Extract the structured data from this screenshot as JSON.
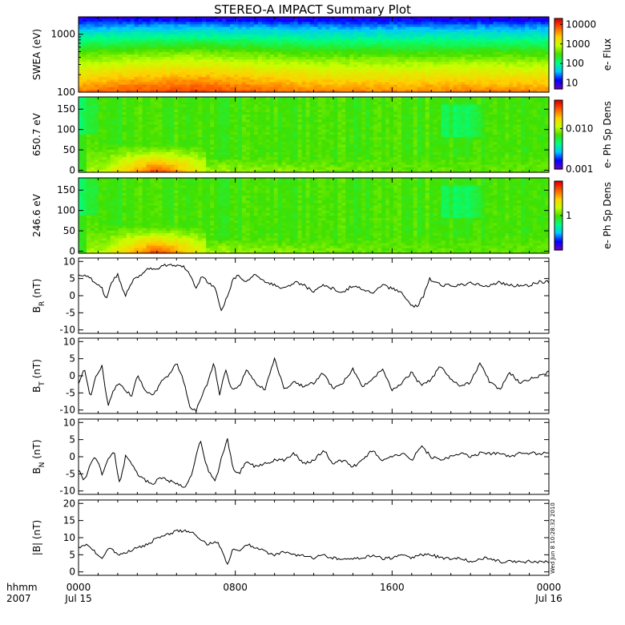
{
  "title": "STEREO-A IMPACT Summary Plot",
  "timestamp": "Wed Jun  8 10:28:32 2010",
  "time_axis": {
    "label_top": "hhmm",
    "label_bottom": "2007",
    "ticks": [
      {
        "hour": 0,
        "label": "0000",
        "date": "Jul 15"
      },
      {
        "hour": 8,
        "label": "0800",
        "date": ""
      },
      {
        "hour": 16,
        "label": "1600",
        "date": ""
      },
      {
        "hour": 24,
        "label": "0000",
        "date": "Jul 16"
      }
    ]
  },
  "colors": {
    "trace": "#000000",
    "colormap": [
      "#6a00c8",
      "#0000ff",
      "#00c8ff",
      "#00ff80",
      "#40e000",
      "#c8ff00",
      "#ffd000",
      "#ff6000",
      "#e00000"
    ]
  },
  "chart_data": [
    {
      "type": "heatmap",
      "ylabel": "SWEA (eV)",
      "yscale": "log",
      "ylim": [
        100,
        2000
      ],
      "yticks": [
        "100",
        "1000"
      ],
      "colorbar": {
        "label": "e- Flux",
        "scale": "log",
        "range": [
          5,
          20000
        ],
        "ticks": [
          "10",
          "100",
          "1000",
          "10000"
        ]
      },
      "profile_note": "energy spectrum: highest flux at low energy",
      "intensity_by_hour": [
        {
          "hour": 0,
          "level": 0.85
        },
        {
          "hour": 3,
          "level": 0.9
        },
        {
          "hour": 6,
          "level": 0.92
        },
        {
          "hour": 9,
          "level": 0.88
        },
        {
          "hour": 12,
          "level": 0.84
        },
        {
          "hour": 16,
          "level": 0.83
        },
        {
          "hour": 20,
          "level": 0.84
        },
        {
          "hour": 24,
          "level": 0.83
        }
      ]
    },
    {
      "type": "heatmap",
      "ylabel": "650.7 eV",
      "ylim": [
        -5,
        180
      ],
      "yticks": [
        "0",
        "50",
        "100",
        "150"
      ],
      "colorbar": {
        "label": "e- Ph Sp Dens",
        "scale": "log",
        "range": [
          0.001,
          0.05
        ],
        "ticks": [
          "0.001",
          "0.010"
        ]
      },
      "enhancements": [
        {
          "hour_start": 0.5,
          "hour_end": 6.5,
          "pitch_max": 60,
          "peak_hour": 4.0,
          "level": 0.9
        },
        {
          "hour_start": 1.0,
          "hour_end": 24,
          "pitch_max": 30,
          "peak_hour": 5.0,
          "level": 0.6
        }
      ],
      "background_level": 0.5
    },
    {
      "type": "heatmap",
      "ylabel": "246.6 eV",
      "ylim": [
        -5,
        180
      ],
      "yticks": [
        "0",
        "50",
        "100",
        "150"
      ],
      "colorbar": {
        "label": "e- Ph Sp Dens",
        "scale": "log",
        "range": [
          0.2,
          5
        ],
        "ticks": [
          "1"
        ]
      },
      "enhancements": [
        {
          "hour_start": 0.5,
          "hour_end": 6.5,
          "pitch_max": 60,
          "peak_hour": 4.0,
          "level": 0.9
        },
        {
          "hour_start": 1.0,
          "hour_end": 24,
          "pitch_max": 30,
          "peak_hour": 5.0,
          "level": 0.6
        }
      ],
      "background_level": 0.5
    },
    {
      "type": "line",
      "ylabel_main": "B",
      "ylabel_sub": "R",
      "ylabel_unit": " (nT)",
      "ylim": [
        -11,
        11
      ],
      "yticks": [
        -10,
        -5,
        0,
        5,
        10
      ],
      "x_hours": [
        0,
        0.5,
        0.8,
        1.2,
        1.4,
        1.7,
        2.0,
        2.4,
        2.8,
        3.2,
        3.6,
        4.0,
        4.5,
        5.0,
        5.5,
        6.0,
        6.3,
        6.6,
        7.0,
        7.3,
        7.6,
        7.9,
        8.2,
        8.5,
        9.0,
        9.5,
        10.0,
        10.5,
        11.0,
        11.5,
        12.0,
        12.5,
        13.0,
        13.5,
        14.0,
        14.5,
        15.0,
        15.5,
        16.0,
        16.5,
        17.0,
        17.3,
        17.6,
        17.9,
        18.2,
        18.5,
        19.0,
        19.5,
        20.0,
        20.5,
        21.0,
        21.5,
        22.0,
        22.5,
        23.0,
        23.5,
        24.0
      ],
      "values": [
        6,
        6,
        4,
        2,
        -1,
        4,
        6,
        0,
        5,
        6,
        8,
        8,
        9,
        9,
        8,
        2,
        6,
        4,
        2,
        -5,
        0,
        5,
        6,
        4,
        6,
        4,
        3,
        2,
        4,
        3,
        1,
        3,
        2,
        1,
        3,
        2,
        1,
        3,
        2,
        1,
        -3,
        -3,
        0,
        5,
        4,
        3,
        3,
        3,
        4,
        3,
        3,
        4,
        3,
        3,
        3,
        4,
        4
      ]
    },
    {
      "type": "line",
      "ylabel_main": "B",
      "ylabel_sub": "T",
      "ylabel_unit": " (nT)",
      "ylim": [
        -11,
        11
      ],
      "yticks": [
        -10,
        -5,
        0,
        5,
        10
      ],
      "x_hours": [
        0,
        0.3,
        0.6,
        0.9,
        1.2,
        1.5,
        1.8,
        2.1,
        2.4,
        2.7,
        3.0,
        3.4,
        3.8,
        4.2,
        4.6,
        5.0,
        5.4,
        5.7,
        6.0,
        6.3,
        6.6,
        6.9,
        7.2,
        7.5,
        7.8,
        8.2,
        8.6,
        9.0,
        9.5,
        10.0,
        10.5,
        11.0,
        11.5,
        12.0,
        12.5,
        13.0,
        13.5,
        14.0,
        14.5,
        15.0,
        15.5,
        16.0,
        16.5,
        17.0,
        17.5,
        18.0,
        18.5,
        19.0,
        19.5,
        20.0,
        20.5,
        21.0,
        21.5,
        22.0,
        22.5,
        23.0,
        23.5,
        24.0
      ],
      "values": [
        -2,
        2,
        -6,
        0,
        3,
        -9,
        -4,
        -2,
        -4,
        -6,
        0,
        -4,
        -6,
        -2,
        0,
        4,
        -2,
        -10,
        -10,
        -6,
        -2,
        4,
        -6,
        2,
        -4,
        -3,
        2,
        -2,
        -4,
        5,
        -4,
        -2,
        -3,
        -2,
        1,
        -4,
        -2,
        2,
        -3,
        -1,
        2,
        -4,
        -2,
        1,
        -3,
        -1,
        3,
        -1,
        -3,
        -2,
        4,
        -2,
        -4,
        1,
        -2,
        -1,
        0,
        1
      ]
    },
    {
      "type": "line",
      "ylabel_main": "B",
      "ylabel_sub": "N",
      "ylabel_unit": " (nT)",
      "ylim": [
        -11,
        11
      ],
      "yticks": [
        -10,
        -5,
        0,
        5,
        10
      ],
      "x_hours": [
        0,
        0.3,
        0.6,
        0.9,
        1.2,
        1.5,
        1.8,
        2.1,
        2.4,
        2.7,
        3.0,
        3.4,
        3.8,
        4.2,
        4.6,
        5.0,
        5.4,
        5.8,
        6.2,
        6.6,
        7.0,
        7.3,
        7.6,
        7.9,
        8.2,
        8.6,
        9.0,
        9.5,
        10.0,
        10.5,
        11.0,
        11.5,
        12.0,
        12.5,
        13.0,
        13.5,
        14.0,
        14.5,
        15.0,
        15.5,
        16.0,
        16.5,
        17.0,
        17.5,
        18.0,
        18.5,
        19.0,
        19.5,
        20.0,
        20.5,
        21.0,
        21.5,
        22.0,
        22.5,
        23.0,
        23.5,
        24.0
      ],
      "values": [
        -4,
        -7,
        -2,
        0,
        -5,
        -1,
        2,
        -8,
        0,
        -2,
        -5,
        -7,
        -8,
        -6,
        -7,
        -8,
        -9,
        -5,
        5,
        -4,
        -7,
        0,
        5,
        -4,
        -5,
        -1,
        -3,
        -2,
        -1,
        -1,
        1,
        -2,
        -1,
        2,
        -2,
        -1,
        -3,
        -1,
        2,
        -1,
        0,
        1,
        -1,
        3,
        0,
        -1,
        0,
        1,
        0,
        1,
        1,
        1,
        0,
        1,
        1,
        1,
        1
      ]
    },
    {
      "type": "line",
      "ylabel_main": "|B|",
      "ylabel_sub": "",
      "ylabel_unit": " (nT)",
      "ylim": [
        -1,
        21
      ],
      "yticks": [
        0,
        5,
        10,
        15,
        20
      ],
      "x_hours": [
        0,
        0.4,
        0.8,
        1.2,
        1.6,
        2.0,
        2.5,
        3.0,
        3.5,
        4.0,
        4.5,
        5.0,
        5.5,
        6.0,
        6.3,
        6.6,
        7.0,
        7.3,
        7.6,
        7.9,
        8.2,
        8.6,
        9.0,
        9.5,
        10.0,
        10.5,
        11.0,
        11.5,
        12.0,
        12.5,
        13.0,
        13.5,
        14.0,
        14.5,
        15.0,
        15.5,
        16.0,
        16.5,
        17.0,
        17.5,
        18.0,
        18.5,
        19.0,
        19.5,
        20.0,
        20.5,
        21.0,
        21.5,
        22.0,
        22.5,
        23.0,
        23.5,
        24.0
      ],
      "values": [
        7,
        8,
        6,
        4,
        7,
        5,
        6,
        7,
        8,
        10,
        11,
        12,
        12,
        11,
        9,
        8,
        9,
        7,
        2,
        7,
        6,
        8,
        7,
        6,
        5,
        6,
        5,
        5,
        4,
        5,
        4,
        4,
        4,
        4,
        5,
        4,
        4,
        5,
        4,
        5,
        5,
        4,
        4,
        4,
        3,
        4,
        4,
        3,
        3,
        3,
        3,
        3,
        3
      ]
    }
  ]
}
